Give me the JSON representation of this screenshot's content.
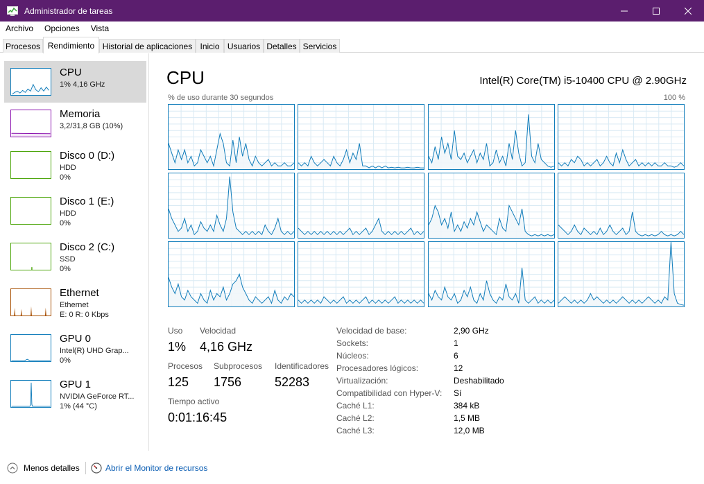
{
  "window": {
    "title": "Administrador de tareas",
    "icon": "task-manager-icon"
  },
  "menu": [
    "Archivo",
    "Opciones",
    "Vista"
  ],
  "tabs": [
    "Procesos",
    "Rendimiento",
    "Historial de aplicaciones",
    "Inicio",
    "Usuarios",
    "Detalles",
    "Servicios"
  ],
  "active_tab": "Rendimiento",
  "sidebar": [
    {
      "name": "CPU",
      "line1": "1% 4,16 GHz",
      "line2": "",
      "color": "#117dbb",
      "selected": true
    },
    {
      "name": "Memoria",
      "line1": "3,2/31,8 GB (10%)",
      "line2": "",
      "color": "#8b12ae",
      "selected": false
    },
    {
      "name": "Disco 0 (D:)",
      "line1": "HDD",
      "line2": "0%",
      "color": "#4da60c",
      "selected": false
    },
    {
      "name": "Disco 1 (E:)",
      "line1": "HDD",
      "line2": "0%",
      "color": "#4da60c",
      "selected": false
    },
    {
      "name": "Disco 2 (C:)",
      "line1": "SSD",
      "line2": "0%",
      "color": "#4da60c",
      "selected": false
    },
    {
      "name": "Ethernet",
      "line1": "Ethernet",
      "line2": "E: 0 R: 0 Kbps",
      "color": "#a74f01",
      "selected": false
    },
    {
      "name": "GPU 0",
      "line1": "Intel(R) UHD Grap...",
      "line2": "0%",
      "color": "#117dbb",
      "selected": false
    },
    {
      "name": "GPU 1",
      "line1": "NVIDIA GeForce RT...",
      "line2": "1% (44 °C)",
      "color": "#117dbb",
      "selected": false
    }
  ],
  "main": {
    "title": "CPU",
    "model": "Intel(R) Core(TM) i5-10400 CPU @ 2.90GHz",
    "graph_label": "% de uso durante 30 segundos",
    "graph_max": "100 %",
    "line_color": "#117dbb",
    "fill_color": "#f1f6fa"
  },
  "stats": {
    "uso_label": "Uso",
    "uso_value": "1%",
    "velocidad_label": "Velocidad",
    "velocidad_value": "4,16 GHz",
    "procesos_label": "Procesos",
    "procesos_value": "125",
    "subprocesos_label": "Subprocesos",
    "subprocesos_value": "1756",
    "identificadores_label": "Identificadores",
    "identificadores_value": "52283",
    "tiempo_label": "Tiempo activo",
    "tiempo_value": "0:01:16:45"
  },
  "info": [
    {
      "label": "Velocidad de base:",
      "value": "2,90 GHz"
    },
    {
      "label": "Sockets:",
      "value": "1"
    },
    {
      "label": "Núcleos:",
      "value": "6"
    },
    {
      "label": "Procesadores lógicos:",
      "value": "12"
    },
    {
      "label": "Virtualización:",
      "value": "Deshabilitado"
    },
    {
      "label": "Compatibilidad con Hyper-V:",
      "value": "Sí"
    },
    {
      "label": "Caché L1:",
      "value": "384 kB"
    },
    {
      "label": "Caché L2:",
      "value": "1,5 MB"
    },
    {
      "label": "Caché L3:",
      "value": "12,0 MB"
    }
  ],
  "footer": {
    "less_details": "Menos detalles",
    "resource_monitor": "Abrir el Monitor de recursos"
  },
  "core_graphs": [
    [
      40,
      25,
      10,
      30,
      15,
      30,
      10,
      20,
      5,
      10,
      30,
      20,
      10,
      20,
      5,
      30,
      55,
      40,
      10,
      5,
      45,
      10,
      50,
      20,
      40,
      15,
      5,
      20,
      10,
      5,
      10,
      15,
      5,
      10,
      5,
      5,
      10,
      5,
      5,
      10
    ],
    [
      10,
      5,
      10,
      5,
      20,
      10,
      5,
      10,
      15,
      10,
      5,
      20,
      10,
      5,
      15,
      30,
      10,
      25,
      15,
      40,
      5,
      5,
      2,
      5,
      2,
      5,
      2,
      5,
      2,
      3,
      2,
      3,
      2,
      2,
      3,
      2,
      2,
      3,
      2,
      2
    ],
    [
      20,
      10,
      35,
      15,
      50,
      25,
      40,
      15,
      60,
      20,
      15,
      25,
      10,
      20,
      30,
      10,
      25,
      15,
      40,
      5,
      10,
      30,
      10,
      20,
      5,
      40,
      15,
      60,
      25,
      5,
      10,
      85,
      20,
      10,
      40,
      15,
      10,
      5,
      3,
      5
    ],
    [
      10,
      5,
      10,
      5,
      15,
      10,
      20,
      15,
      5,
      10,
      5,
      10,
      15,
      5,
      10,
      20,
      10,
      5,
      25,
      10,
      30,
      15,
      5,
      10,
      15,
      5,
      10,
      5,
      10,
      5,
      10,
      5,
      5,
      10,
      5,
      5,
      3,
      5,
      10,
      5
    ],
    [
      45,
      30,
      20,
      10,
      15,
      30,
      10,
      20,
      5,
      10,
      25,
      15,
      10,
      20,
      10,
      35,
      20,
      10,
      30,
      95,
      40,
      15,
      10,
      5,
      10,
      5,
      10,
      5,
      10,
      5,
      20,
      10,
      5,
      15,
      30,
      10,
      5,
      10,
      5,
      10
    ],
    [
      15,
      10,
      5,
      10,
      5,
      10,
      5,
      10,
      5,
      10,
      5,
      10,
      5,
      10,
      5,
      10,
      15,
      5,
      10,
      5,
      10,
      15,
      5,
      10,
      20,
      30,
      10,
      5,
      10,
      5,
      10,
      5,
      10,
      5,
      10,
      15,
      5,
      10,
      5,
      10
    ],
    [
      20,
      30,
      50,
      40,
      20,
      30,
      15,
      40,
      10,
      20,
      10,
      25,
      15,
      30,
      20,
      40,
      25,
      10,
      20,
      15,
      10,
      5,
      30,
      15,
      10,
      50,
      40,
      30,
      20,
      45,
      10,
      5,
      3,
      5,
      3,
      5,
      3,
      5,
      3,
      5
    ],
    [
      20,
      15,
      10,
      5,
      10,
      20,
      10,
      5,
      15,
      10,
      5,
      10,
      5,
      15,
      5,
      10,
      20,
      10,
      5,
      10,
      15,
      5,
      10,
      40,
      10,
      5,
      3,
      5,
      3,
      5,
      3,
      5,
      10,
      5,
      3,
      5,
      3,
      5,
      10,
      5
    ],
    [
      45,
      30,
      20,
      35,
      15,
      10,
      25,
      15,
      10,
      5,
      20,
      10,
      5,
      25,
      10,
      20,
      15,
      30,
      10,
      20,
      35,
      40,
      50,
      30,
      20,
      10,
      5,
      15,
      10,
      5,
      10,
      15,
      5,
      25,
      10,
      5,
      15,
      10,
      20,
      15
    ],
    [
      10,
      5,
      10,
      5,
      10,
      5,
      10,
      5,
      15,
      10,
      5,
      10,
      5,
      10,
      15,
      5,
      10,
      5,
      10,
      5,
      10,
      15,
      5,
      10,
      5,
      10,
      5,
      10,
      5,
      10,
      15,
      5,
      10,
      5,
      10,
      5,
      10,
      5,
      10,
      5
    ],
    [
      20,
      10,
      25,
      15,
      10,
      30,
      15,
      10,
      20,
      5,
      10,
      25,
      15,
      30,
      10,
      5,
      20,
      10,
      40,
      20,
      10,
      5,
      15,
      10,
      35,
      15,
      10,
      20,
      5,
      60,
      10,
      5,
      10,
      15,
      5,
      10,
      5,
      10,
      5,
      10
    ],
    [
      5,
      10,
      15,
      10,
      5,
      10,
      5,
      10,
      5,
      10,
      20,
      10,
      15,
      10,
      5,
      10,
      5,
      10,
      5,
      10,
      15,
      10,
      5,
      10,
      5,
      10,
      5,
      10,
      15,
      10,
      5,
      10,
      5,
      15,
      10,
      100,
      20,
      5,
      3,
      2
    ]
  ]
}
